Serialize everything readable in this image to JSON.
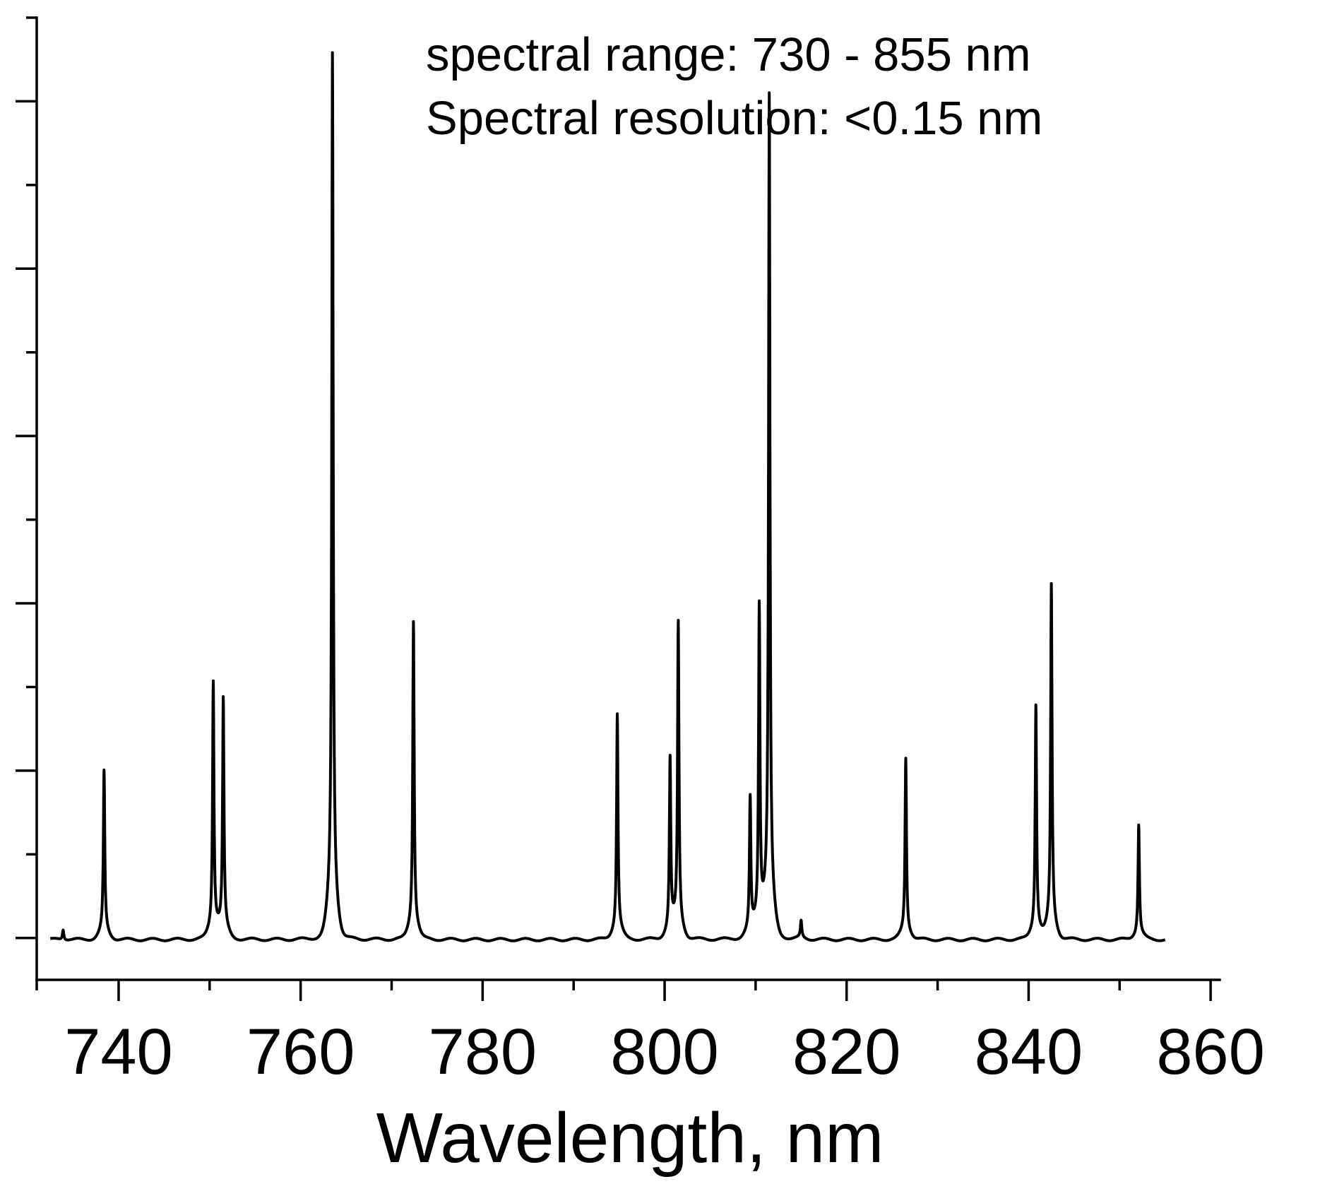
{
  "chart_data": {
    "type": "line",
    "title": "",
    "xlabel": "Wavelength, nm",
    "ylabel": "",
    "xlim": [
      731,
      861
    ],
    "ylim": [
      -0.05,
      1.1
    ],
    "x_ticks": [
      740,
      760,
      780,
      800,
      820,
      840,
      860
    ],
    "x_tick_labels": [
      "740",
      "760",
      "780",
      "800",
      "820",
      "840",
      "860"
    ],
    "y_tick_labels_shown": false,
    "grid": false,
    "legend": "none",
    "annotations": [
      "spectral range: 730 - 855 nm",
      "Spectral resolution: <0.15 nm"
    ],
    "line_color": "#000000",
    "series": [
      {
        "x_range": [
          732.5,
          855
        ],
        "baseline": 0.0,
        "peaks": [
          {
            "x": 733.9,
            "y": 0.012
          },
          {
            "x": 738.4,
            "y": 0.19
          },
          {
            "x": 750.4,
            "y": 0.29
          },
          {
            "x": 751.5,
            "y": 0.27
          },
          {
            "x": 763.5,
            "y": 1.0
          },
          {
            "x": 772.4,
            "y": 0.36
          },
          {
            "x": 794.8,
            "y": 0.255
          },
          {
            "x": 800.6,
            "y": 0.2
          },
          {
            "x": 801.5,
            "y": 0.355
          },
          {
            "x": 810.4,
            "y": 0.37
          },
          {
            "x": 811.5,
            "y": 0.95
          },
          {
            "x": 809.4,
            "y": 0.155
          },
          {
            "x": 815.0,
            "y": 0.02
          },
          {
            "x": 826.5,
            "y": 0.205
          },
          {
            "x": 840.8,
            "y": 0.265
          },
          {
            "x": 842.5,
            "y": 0.4
          },
          {
            "x": 852.1,
            "y": 0.13
          }
        ]
      }
    ]
  }
}
